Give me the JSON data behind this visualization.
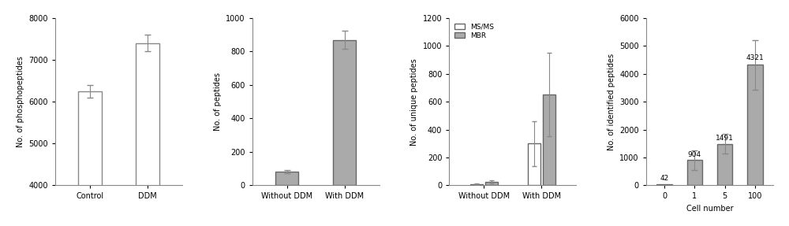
{
  "panel1": {
    "categories": [
      "Control",
      "DDM"
    ],
    "values": [
      6250,
      7400
    ],
    "errors": [
      150,
      200
    ],
    "bar_colors": [
      "white",
      "white"
    ],
    "edgecolor": "#888888",
    "ylabel": "No. of phosphopeptides",
    "ylim": [
      4000,
      8000
    ],
    "yticks": [
      4000,
      5000,
      6000,
      7000,
      8000
    ]
  },
  "panel2": {
    "categories": [
      "Without DDM",
      "With DDM"
    ],
    "values": [
      80,
      870
    ],
    "errors": [
      10,
      55
    ],
    "bar_colors": [
      "#aaaaaa",
      "#aaaaaa"
    ],
    "edgecolor": "#666666",
    "ylabel": "No. of peptides",
    "ylim": [
      0,
      1000
    ],
    "yticks": [
      0,
      200,
      400,
      600,
      800,
      1000
    ]
  },
  "panel3": {
    "categories": [
      "Without DDM",
      "With DDM"
    ],
    "msms_values": [
      8,
      300
    ],
    "msms_errors": [
      3,
      160
    ],
    "mbr_values": [
      25,
      650
    ],
    "mbr_errors": [
      10,
      300
    ],
    "msms_color": "white",
    "mbr_color": "#aaaaaa",
    "edgecolor": "#666666",
    "ylabel": "No. of unique peptides",
    "ylim": [
      0,
      1200
    ],
    "yticks": [
      0,
      200,
      400,
      600,
      800,
      1000,
      1200
    ],
    "legend_labels": [
      "MS/MS",
      "MBR"
    ]
  },
  "panel4": {
    "categories": [
      "0",
      "1",
      "5",
      "100"
    ],
    "values": [
      42,
      904,
      1491,
      4321
    ],
    "errors": [
      0,
      350,
      350,
      900
    ],
    "bar_colors": [
      "#aaaaaa",
      "#aaaaaa",
      "#aaaaaa",
      "#aaaaaa"
    ],
    "edgecolor": "#666666",
    "ylabel": "No. of identified peptides",
    "xlabel": "Cell number",
    "ylim": [
      0,
      6000
    ],
    "yticks": [
      0,
      1000,
      2000,
      3000,
      4000,
      5000,
      6000
    ],
    "annotations": [
      "42",
      "904",
      "1491",
      "4321"
    ]
  }
}
